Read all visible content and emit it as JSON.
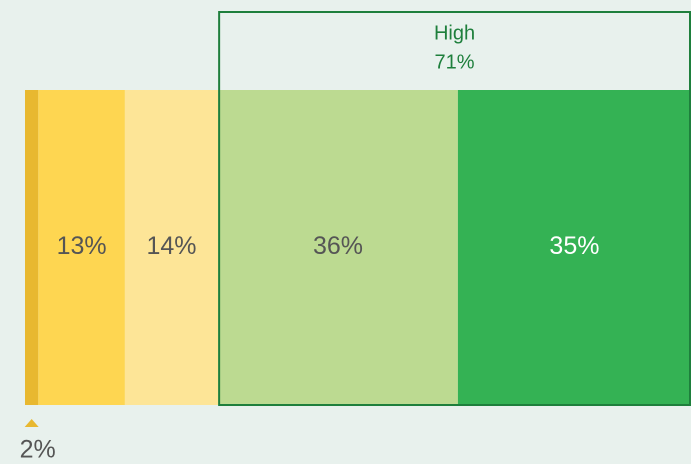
{
  "chart_data": {
    "type": "stacked_bar",
    "values": [
      2,
      13,
      14,
      36,
      35
    ],
    "value_labels": [
      "2%",
      "13%",
      "14%",
      "36%",
      "35%"
    ],
    "colors": [
      "#e8b830",
      "#fed651",
      "#fde597",
      "#bcda91",
      "#34b254"
    ],
    "xlim": [
      0,
      100
    ],
    "annotation": {
      "label": "High",
      "value": 71,
      "value_label": "71%"
    }
  }
}
